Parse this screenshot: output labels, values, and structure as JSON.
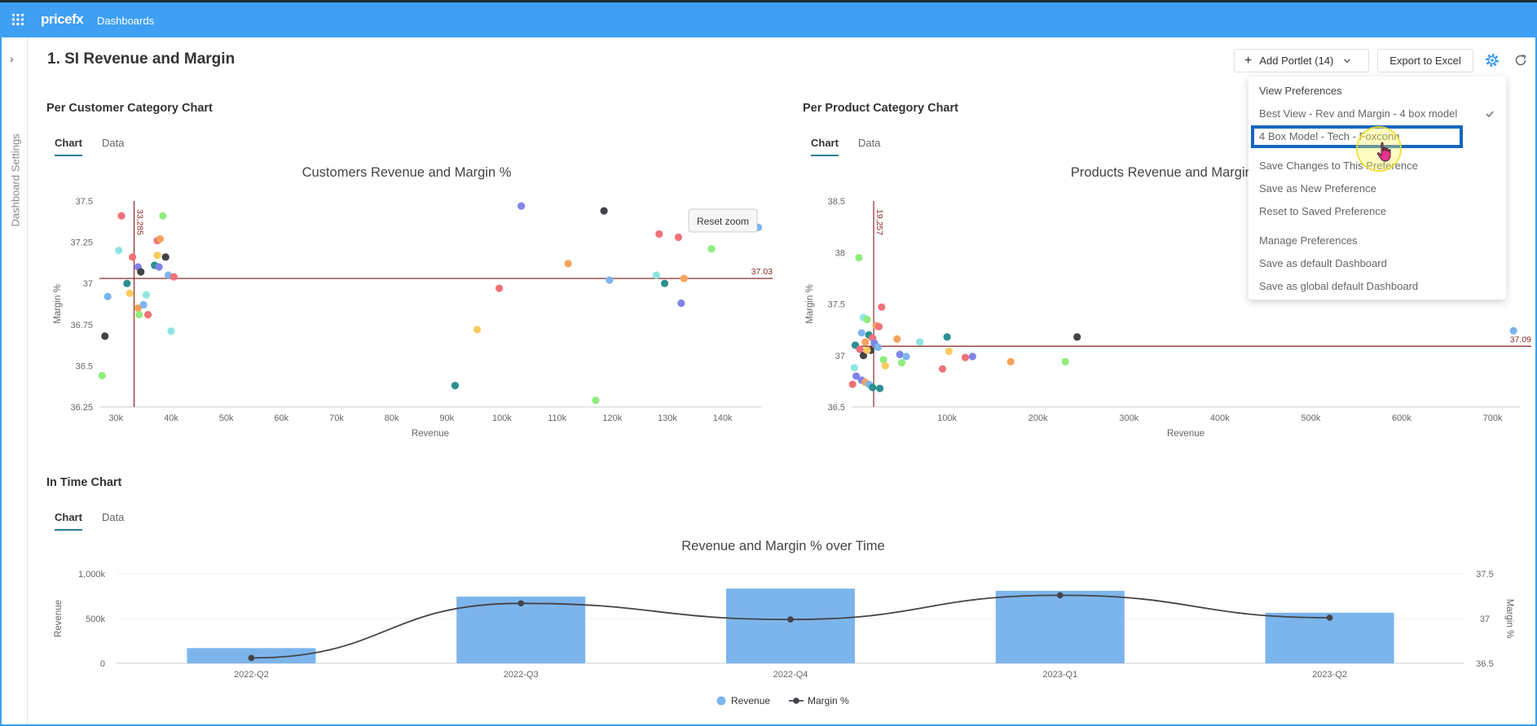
{
  "topbar": {
    "logo": "pricefx",
    "section": "Dashboards"
  },
  "icons": {
    "apps": "apps-grid-icon",
    "notifications": "bell-icon",
    "help": "help-icon",
    "tools": "sliders-icon",
    "database": "database-icon",
    "settings": "wrench-icon",
    "gear": "gear-icon",
    "refresh": "refresh-icon"
  },
  "sidebar": {
    "label": "Dashboard Settings",
    "toggle": "›"
  },
  "page": {
    "title": "1. SI Revenue and Margin"
  },
  "toolbar": {
    "add_portlet": "Add Portlet (14)",
    "export": "Export to Excel"
  },
  "portlets": {
    "customer": {
      "title": "Per Customer Category Chart",
      "tabs": [
        "Chart",
        "Data"
      ],
      "reset_zoom": "Reset zoom"
    },
    "product": {
      "title": "Per Product Category Chart",
      "tabs": [
        "Chart",
        "Data"
      ]
    },
    "time": {
      "title": "In Time Chart",
      "tabs": [
        "Chart",
        "Data"
      ]
    }
  },
  "menu": {
    "header": "View Preferences",
    "items": [
      "Best View - Rev and Margin - 4 box model",
      "4 Box Model - Tech - Foxconn",
      "Save Changes to This Preference",
      "Save as New Preference",
      "Reset to Saved Preference",
      "Manage Preferences",
      "Save as default Dashboard",
      "Save as global default Dashboard"
    ],
    "selected_index": 0
  },
  "colors": {
    "accent": "#3f9ff3",
    "teal": "#2f7d95",
    "refline": "#8b2b2b"
  },
  "chart_data": [
    {
      "type": "scatter",
      "title": "Customers Revenue and Margin %",
      "xlabel": "Revenue",
      "ylabel": "Margin %",
      "xlim": [
        27000,
        147000
      ],
      "ylim": [
        36.25,
        37.5
      ],
      "xticks": [
        "30k",
        "40k",
        "50k",
        "60k",
        "70k",
        "80k",
        "90k",
        "100k",
        "110k",
        "120k",
        "130k",
        "140k"
      ],
      "yticks": [
        "36.25",
        "36.5",
        "36.75",
        "37",
        "37.25",
        "37.5"
      ],
      "vline": {
        "value": 33285,
        "label": "33,285"
      },
      "hline": {
        "value": 37.03,
        "label": "37.03"
      },
      "points": [
        {
          "x": 31000,
          "y": 37.41,
          "c": "#f07279"
        },
        {
          "x": 30500,
          "y": 37.2,
          "c": "#8ee5e0"
        },
        {
          "x": 33000,
          "y": 37.16,
          "c": "#f07279"
        },
        {
          "x": 28500,
          "y": 36.92,
          "c": "#7cb5ec"
        },
        {
          "x": 28000,
          "y": 36.68,
          "c": "#434348"
        },
        {
          "x": 27500,
          "y": 36.44,
          "c": "#90ed7d"
        },
        {
          "x": 32000,
          "y": 37.0,
          "c": "#2b908f"
        },
        {
          "x": 32500,
          "y": 36.94,
          "c": "#f7cb5c"
        },
        {
          "x": 34000,
          "y": 37.1,
          "c": "#8085e9"
        },
        {
          "x": 34500,
          "y": 37.07,
          "c": "#434348"
        },
        {
          "x": 34000,
          "y": 36.85,
          "c": "#f7a35c"
        },
        {
          "x": 35000,
          "y": 36.87,
          "c": "#7cb5ec"
        },
        {
          "x": 35500,
          "y": 36.93,
          "c": "#8ee5e0"
        },
        {
          "x": 34200,
          "y": 36.81,
          "c": "#90ed7d"
        },
        {
          "x": 35800,
          "y": 36.81,
          "c": "#f07279"
        },
        {
          "x": 37500,
          "y": 37.26,
          "c": "#f07279"
        },
        {
          "x": 38000,
          "y": 37.27,
          "c": "#f7a35c"
        },
        {
          "x": 38500,
          "y": 37.41,
          "c": "#90ed7d"
        },
        {
          "x": 37500,
          "y": 37.17,
          "c": "#f7cb5c"
        },
        {
          "x": 39000,
          "y": 37.16,
          "c": "#434348"
        },
        {
          "x": 37000,
          "y": 37.11,
          "c": "#2b908f"
        },
        {
          "x": 37800,
          "y": 37.1,
          "c": "#8085e9"
        },
        {
          "x": 39500,
          "y": 37.05,
          "c": "#7cb5ec"
        },
        {
          "x": 40500,
          "y": 37.04,
          "c": "#f07279"
        },
        {
          "x": 40000,
          "y": 36.71,
          "c": "#8ee5e0"
        },
        {
          "x": 91500,
          "y": 36.38,
          "c": "#2b908f"
        },
        {
          "x": 95500,
          "y": 36.72,
          "c": "#f7cb5c"
        },
        {
          "x": 99500,
          "y": 36.97,
          "c": "#f07279"
        },
        {
          "x": 103500,
          "y": 37.47,
          "c": "#8085e9"
        },
        {
          "x": 112000,
          "y": 37.12,
          "c": "#f7a35c"
        },
        {
          "x": 117000,
          "y": 36.29,
          "c": "#90ed7d"
        },
        {
          "x": 118500,
          "y": 37.44,
          "c": "#434348"
        },
        {
          "x": 119500,
          "y": 37.02,
          "c": "#7cb5ec"
        },
        {
          "x": 128500,
          "y": 37.3,
          "c": "#f07279"
        },
        {
          "x": 128000,
          "y": 37.05,
          "c": "#8ee5e0"
        },
        {
          "x": 129500,
          "y": 37.0,
          "c": "#2b908f"
        },
        {
          "x": 132000,
          "y": 37.28,
          "c": "#f07279"
        },
        {
          "x": 133000,
          "y": 37.03,
          "c": "#f7a35c"
        },
        {
          "x": 132500,
          "y": 36.88,
          "c": "#8085e9"
        },
        {
          "x": 138000,
          "y": 37.21,
          "c": "#90ed7d"
        },
        {
          "x": 146500,
          "y": 37.34,
          "c": "#7cb5ec"
        }
      ]
    },
    {
      "type": "scatter",
      "title": "Products Revenue and Margin %",
      "xlabel": "Revenue",
      "ylabel": "Margin %",
      "xlim": [
        -5000,
        730000
      ],
      "ylim": [
        36.5,
        38.5
      ],
      "xticks": [
        "100k",
        "200k",
        "300k",
        "400k",
        "500k",
        "600k",
        "700k"
      ],
      "yticks": [
        "36.5",
        "37",
        "37.5",
        "38",
        "38.5"
      ],
      "vline": {
        "value": 19257,
        "label": "19,257"
      },
      "hline": {
        "value": 37.09,
        "label": "37.09"
      },
      "points": [
        {
          "x": 3000,
          "y": 37.95,
          "c": "#90ed7d"
        },
        {
          "x": 8000,
          "y": 37.37,
          "c": "#8ee5e0"
        },
        {
          "x": 12000,
          "y": 37.35,
          "c": "#90ed7d"
        },
        {
          "x": 22000,
          "y": 37.29,
          "c": "#f7a35c"
        },
        {
          "x": 25000,
          "y": 37.28,
          "c": "#f07279"
        },
        {
          "x": 28000,
          "y": 37.47,
          "c": "#f07279"
        },
        {
          "x": 6000,
          "y": 37.22,
          "c": "#7cb5ec"
        },
        {
          "x": 14000,
          "y": 37.2,
          "c": "#2b908f"
        },
        {
          "x": 18000,
          "y": 37.17,
          "c": "#f07279"
        },
        {
          "x": 10000,
          "y": 37.13,
          "c": "#f7a35c"
        },
        {
          "x": 20000,
          "y": 37.12,
          "c": "#8085e9"
        },
        {
          "x": -1000,
          "y": 37.1,
          "c": "#2b908f"
        },
        {
          "x": 4000,
          "y": 37.06,
          "c": "#f07279"
        },
        {
          "x": 16000,
          "y": 37.05,
          "c": "#434348"
        },
        {
          "x": 8000,
          "y": 37.0,
          "c": "#434348"
        },
        {
          "x": 24000,
          "y": 37.08,
          "c": "#7cb5ec"
        },
        {
          "x": 12000,
          "y": 37.05,
          "c": "#f7cb5c"
        },
        {
          "x": 30000,
          "y": 36.96,
          "c": "#90ed7d"
        },
        {
          "x": -2000,
          "y": 36.88,
          "c": "#8ee5e0"
        },
        {
          "x": 0,
          "y": 36.8,
          "c": "#8085e9"
        },
        {
          "x": -4000,
          "y": 36.72,
          "c": "#f07279"
        },
        {
          "x": 6000,
          "y": 36.76,
          "c": "#8085e9"
        },
        {
          "x": 10000,
          "y": 36.74,
          "c": "#f7a35c"
        },
        {
          "x": 14000,
          "y": 36.72,
          "c": "#7cb5ec"
        },
        {
          "x": 18000,
          "y": 36.69,
          "c": "#2b908f"
        },
        {
          "x": 26000,
          "y": 36.68,
          "c": "#2b908f"
        },
        {
          "x": 32000,
          "y": 36.9,
          "c": "#f7cb5c"
        },
        {
          "x": 45000,
          "y": 37.16,
          "c": "#f7a35c"
        },
        {
          "x": 48000,
          "y": 37.01,
          "c": "#8085e9"
        },
        {
          "x": 50000,
          "y": 36.93,
          "c": "#90ed7d"
        },
        {
          "x": 55000,
          "y": 36.99,
          "c": "#7cb5ec"
        },
        {
          "x": 70000,
          "y": 37.13,
          "c": "#8ee5e0"
        },
        {
          "x": 95000,
          "y": 36.87,
          "c": "#f07279"
        },
        {
          "x": 100000,
          "y": 37.18,
          "c": "#2b908f"
        },
        {
          "x": 102000,
          "y": 37.04,
          "c": "#f7cb5c"
        },
        {
          "x": 120000,
          "y": 36.98,
          "c": "#f07279"
        },
        {
          "x": 128000,
          "y": 36.99,
          "c": "#8085e9"
        },
        {
          "x": 170000,
          "y": 36.94,
          "c": "#f7a35c"
        },
        {
          "x": 230000,
          "y": 36.94,
          "c": "#90ed7d"
        },
        {
          "x": 243000,
          "y": 37.18,
          "c": "#434348"
        },
        {
          "x": 723000,
          "y": 37.24,
          "c": "#7cb5ec"
        }
      ]
    },
    {
      "type": "bar",
      "title": "Revenue and Margin % over Time",
      "categories": [
        "2022-Q2",
        "2022-Q3",
        "2022-Q4",
        "2023-Q1",
        "2023-Q2"
      ],
      "ylabel": "Revenue",
      "y2label": "Margin %",
      "ylim": [
        0,
        1000000
      ],
      "y2lim": [
        36.5,
        37.5
      ],
      "yticks": [
        "0",
        "500k",
        "1,000k"
      ],
      "y2ticks": [
        "36.5",
        "37",
        "37.5"
      ],
      "series": [
        {
          "name": "Revenue",
          "type": "bar",
          "color": "#7cb5ec",
          "values": [
            170000,
            745000,
            835000,
            810000,
            565000
          ]
        },
        {
          "name": "Margin %",
          "type": "line",
          "color": "#434348",
          "values": [
            36.56,
            37.17,
            36.99,
            37.26,
            37.01
          ]
        }
      ],
      "legend": "bottom-center"
    }
  ]
}
